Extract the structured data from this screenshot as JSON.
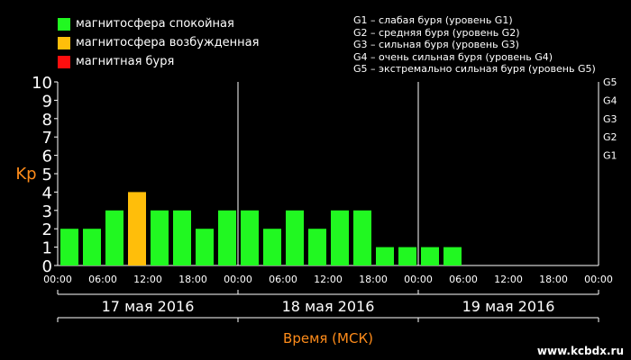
{
  "legend": {
    "items": [
      {
        "label": "магнитосфера спокойная",
        "color": "#21f821"
      },
      {
        "label": "магнитосфера возбужденная",
        "color": "#ffbe0a"
      },
      {
        "label": "магнитная буря",
        "color": "#fe0e0e"
      }
    ]
  },
  "storm_levels": [
    "G1 – слабая буря (уровень G1)",
    "G2 – средняя буря (уровень G2)",
    "G3 – сильная буря (уровень G3)",
    "G4 – очень сильная буря (уровень G4)",
    "G5 – экстремально сильная буря (уровень G5)"
  ],
  "watermark": "www.kcbdx.ru",
  "colors": {
    "quiet": "#21f821",
    "active": "#ffbe0a",
    "storm": "#fe0e0e",
    "axis_title": "#ff8c1a",
    "background": "#000000"
  },
  "chart_data": {
    "type": "bar",
    "ylabel": "Kp",
    "xlabel": "Время (МСК)",
    "ylim": [
      0,
      10
    ],
    "yticks": [
      0,
      1,
      2,
      3,
      4,
      5,
      6,
      7,
      8,
      9,
      10
    ],
    "g_levels": [
      {
        "label": "G1",
        "kp": 5
      },
      {
        "label": "G2",
        "kp": 6
      },
      {
        "label": "G3",
        "kp": 7
      },
      {
        "label": "G4",
        "kp": 8
      },
      {
        "label": "G5",
        "kp": 9
      }
    ],
    "time_ticks": [
      "00:00",
      "06:00",
      "12:00",
      "18:00",
      "00:00",
      "06:00",
      "12:00",
      "18:00",
      "00:00",
      "06:00",
      "12:00",
      "18:00",
      "00:00"
    ],
    "days": [
      "17 мая 2016",
      "18 мая 2016",
      "19 мая 2016"
    ],
    "interval_hours": 3,
    "values": [
      2,
      2,
      3,
      4,
      3,
      3,
      2,
      3,
      3,
      2,
      3,
      2,
      3,
      3,
      1,
      1,
      1,
      1
    ],
    "active_threshold": 4,
    "storm_threshold": 5,
    "grid": false
  }
}
